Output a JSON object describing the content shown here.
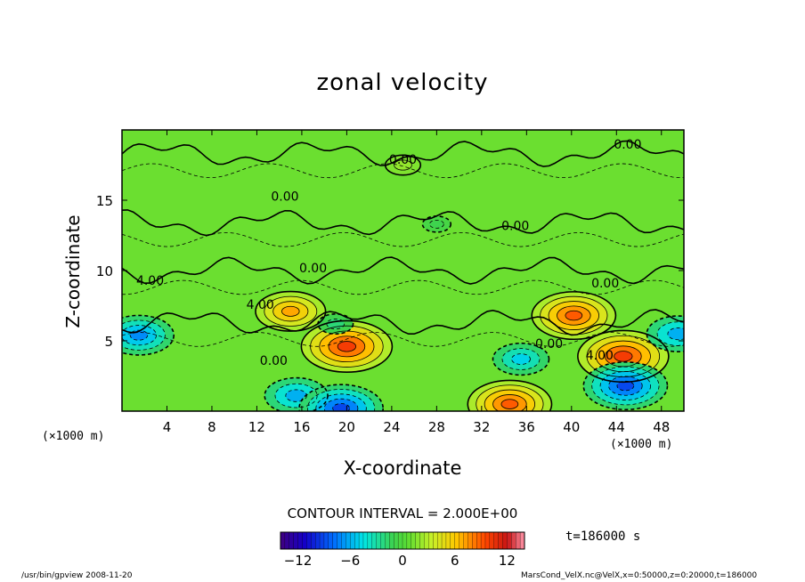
{
  "chart_data": {
    "type": "heatmap",
    "title": "zonal velocity",
    "xlabel": "X-coordinate",
    "ylabel": "Z-coordinate",
    "x_unit": "(×1000 m)",
    "xlim": [
      0,
      50
    ],
    "ylim": [
      0,
      20
    ],
    "x_ticks": [
      4,
      8,
      12,
      16,
      20,
      24,
      28,
      32,
      36,
      40,
      44,
      48
    ],
    "y_ticks": [
      5,
      10,
      15
    ],
    "contour_interval_label": "CONTOUR INTERVAL = 2.000E+00",
    "colorbar": {
      "ticks": [
        -12,
        -6,
        0,
        6,
        12
      ],
      "min": -14,
      "max": 14
    },
    "contour_labels": [
      {
        "text": "0.00",
        "x": 45,
        "z": 19.0
      },
      {
        "text": "0.00",
        "x": 25,
        "z": 17.9
      },
      {
        "text": "0.00",
        "x": 14.5,
        "z": 15.3
      },
      {
        "text": "0.00",
        "x": 35,
        "z": 13.2
      },
      {
        "text": "4.00",
        "x": 2.5,
        "z": 9.3
      },
      {
        "text": "0.00",
        "x": 17,
        "z": 10.2
      },
      {
        "text": "0.00",
        "x": 43,
        "z": 9.1
      },
      {
        "text": "4.00",
        "x": 12.3,
        "z": 7.6
      },
      {
        "text": "0.00",
        "x": 38,
        "z": 4.8
      },
      {
        "text": "4.00",
        "x": 42.5,
        "z": 4.0
      },
      {
        "text": "0.00",
        "x": 13.5,
        "z": 3.6
      }
    ],
    "features": [
      {
        "x": 20,
        "z": 4.6,
        "value": 10
      },
      {
        "x": 15,
        "z": 7.1,
        "value": 7
      },
      {
        "x": 40.2,
        "z": 6.8,
        "value": 9
      },
      {
        "x": 44.6,
        "z": 3.9,
        "value": 10
      },
      {
        "x": 34.5,
        "z": 0.5,
        "value": 9
      },
      {
        "x": 1.5,
        "z": 5.4,
        "value": -7
      },
      {
        "x": 35.5,
        "z": 3.7,
        "value": -5
      },
      {
        "x": 44.8,
        "z": 1.8,
        "value": -9
      },
      {
        "x": 15.5,
        "z": 1.1,
        "value": -6
      },
      {
        "x": 19.5,
        "z": 0.2,
        "value": -9
      },
      {
        "x": 49.5,
        "z": 5.5,
        "value": -6
      },
      {
        "x": 19,
        "z": 6.2,
        "value": -2
      },
      {
        "x": 25,
        "z": 17.5,
        "value": 2
      },
      {
        "x": 28,
        "z": 13.3,
        "value": -1
      }
    ]
  },
  "time_label": "t=186000  s",
  "footer_left": "/usr/bin/gpview  2008-11-20",
  "footer_right": "MarsCond_VelX.nc@VelX,x=0:50000,z=0:20000,t=186000"
}
